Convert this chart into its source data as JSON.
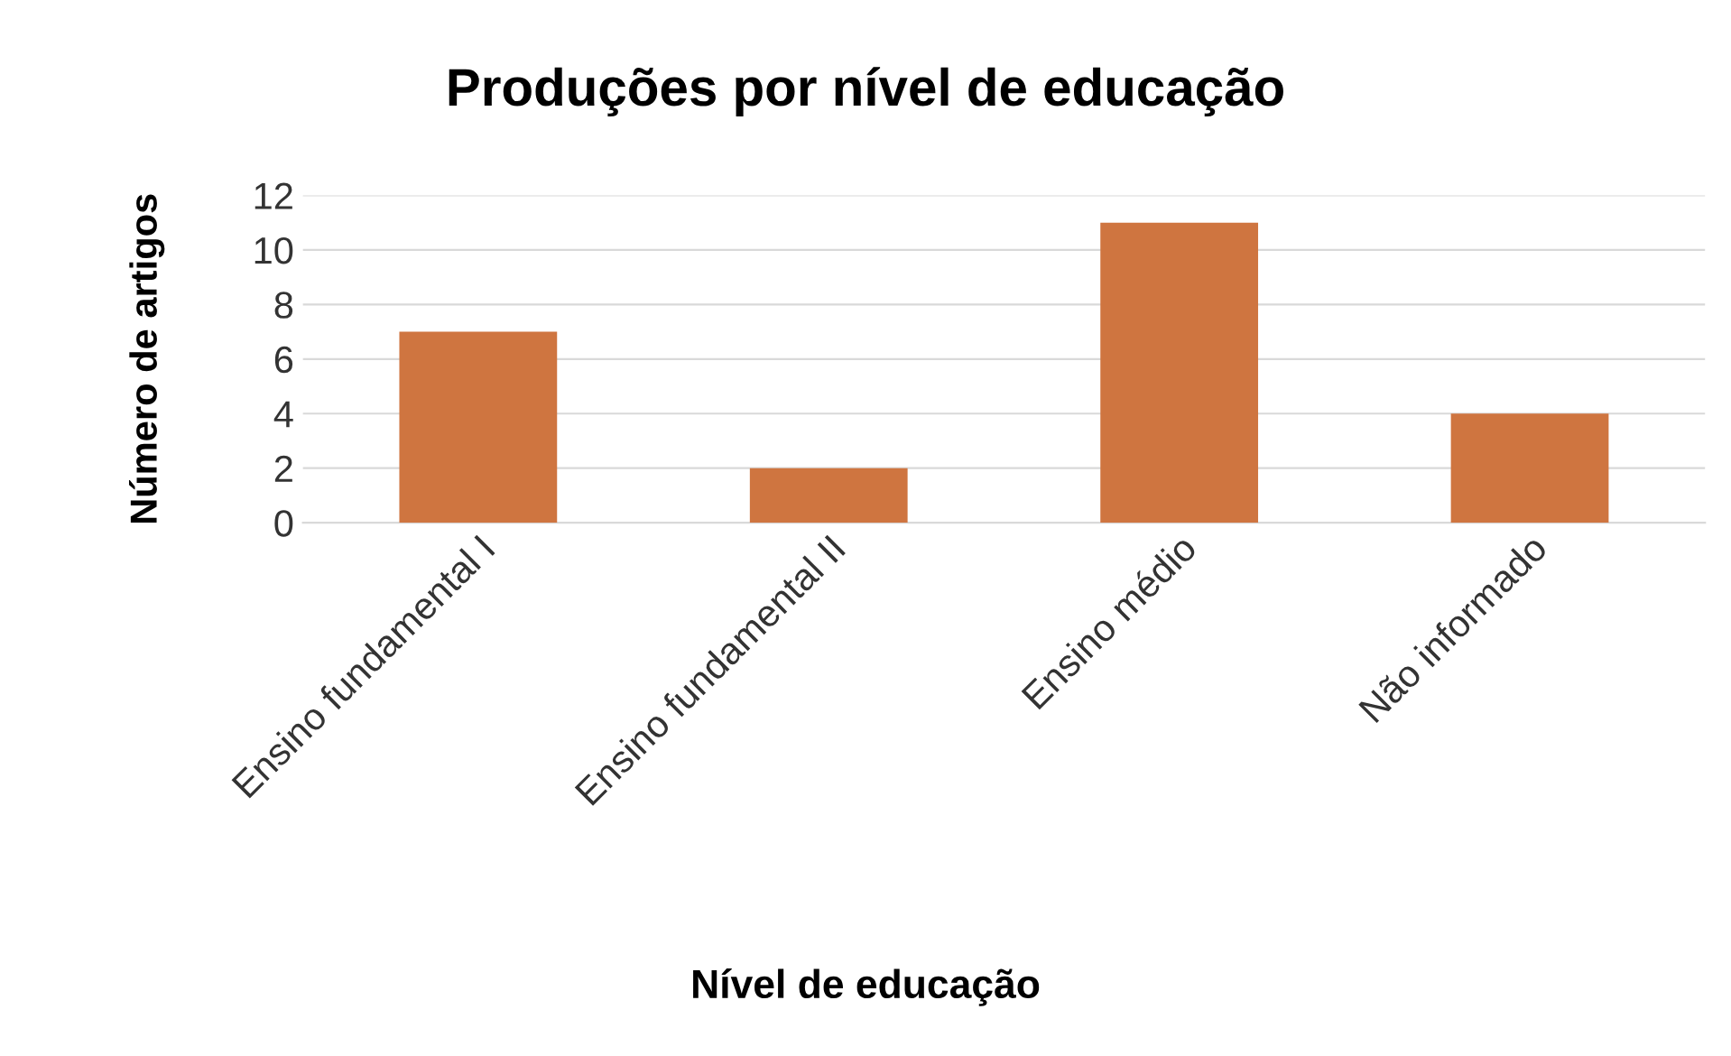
{
  "chart_data": {
    "type": "bar",
    "title": "Produções por nível de educação",
    "xlabel": "Nível de educação",
    "ylabel": "Número de artigos",
    "categories": [
      "Ensino fundamental I",
      "Ensino fundamental II",
      "Ensino médio",
      "Não informado"
    ],
    "values": [
      7,
      2,
      11,
      4
    ],
    "color": "#cf7540",
    "ylim": [
      0,
      12
    ],
    "yticks": [
      0,
      2,
      4,
      6,
      8,
      10,
      12
    ],
    "grid": "y",
    "legend": false
  }
}
